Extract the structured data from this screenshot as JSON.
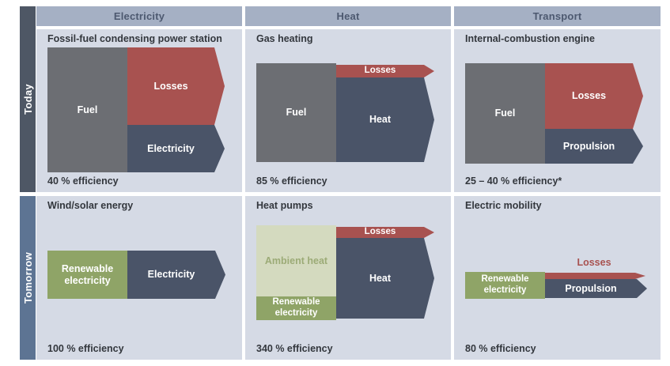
{
  "palette": {
    "header_bg": "#a5b0c4",
    "header_text": "#4d5970",
    "panel_bg": "#d5dae5",
    "today_bg": "#4e5765",
    "tomorrow_bg": "#5d7493",
    "fuel_gray": "#6c6e73",
    "losses_red": "#a85250",
    "output_blue": "#4a5468",
    "renewable_green": "#8fa467",
    "ambient_green": "#d4dabf",
    "ambient_text": "#9cab77",
    "title_text": "#33373d"
  },
  "column_headers": [
    {
      "label": "Electricity"
    },
    {
      "label": "Heat"
    },
    {
      "label": "Transport"
    }
  ],
  "row_labels": [
    {
      "label": "Today"
    },
    {
      "label": "Tomorrow"
    }
  ],
  "panels": {
    "today_electricity": {
      "title": "Fossil-fuel condensing power station",
      "fuel": "Fuel",
      "losses": "Losses",
      "output": "Electricity",
      "efficiency": "40 % efficiency"
    },
    "today_heat": {
      "title": "Gas heating",
      "fuel": "Fuel",
      "losses": "Losses",
      "output": "Heat",
      "efficiency": "85 % efficiency"
    },
    "today_transport": {
      "title": "Internal-combustion engine",
      "fuel": "Fuel",
      "losses": "Losses",
      "output": "Propulsion",
      "efficiency": "25 – 40 % efficiency*"
    },
    "tomorrow_electricity": {
      "title": "Wind/solar energy",
      "input": "Renewable electricity",
      "output": "Electricity",
      "efficiency": "100 % efficiency"
    },
    "tomorrow_heat": {
      "title": "Heat pumps",
      "ambient": "Ambient heat",
      "input": "Renewable electricity",
      "losses": "Losses",
      "output": "Heat",
      "efficiency": "340 % efficiency"
    },
    "tomorrow_transport": {
      "title": "Electric mobility",
      "input": "Renewable electricity",
      "losses": "Losses",
      "output": "Propulsion",
      "efficiency": "80 % efficiency"
    }
  }
}
